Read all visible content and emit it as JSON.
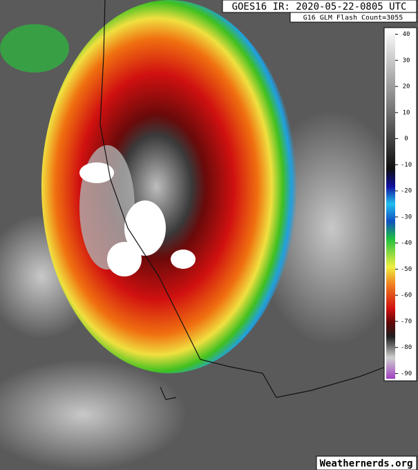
{
  "header": {
    "title": "GOES16 IR: 2020-05-22-0805 UTC",
    "subtitle": "G16 GLM Flash Count=3055"
  },
  "colorbar": {
    "lim": [
      42,
      -92
    ],
    "ticks": [
      40,
      30,
      20,
      10,
      0,
      -10,
      -20,
      -30,
      -40,
      -50,
      -60,
      -70,
      -80,
      -90
    ]
  },
  "watermark": "Weathernerds.org"
}
